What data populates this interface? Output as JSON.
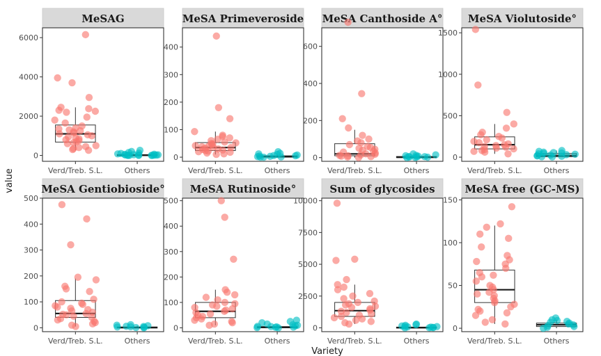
{
  "figure": {
    "xlabel": "Variety",
    "ylabel": "value"
  },
  "colors": {
    "group1": "#f8766d",
    "group2": "#00bfc4"
  },
  "chart_data": [
    {
      "type": "box",
      "title": "MeSAG",
      "categories": [
        "Verd/Treb. S.L.",
        "Others"
      ],
      "ylim": [
        -300,
        6500
      ],
      "yticks": [
        0,
        2000,
        4000,
        6000
      ],
      "box_stats": [
        {
          "min": 260,
          "q1": 680,
          "median": 1100,
          "q3": 1550,
          "max": 2450
        },
        {
          "min": 0,
          "q1": 5,
          "median": 15,
          "q3": 40,
          "max": 110
        }
      ],
      "points": [
        [
          6150,
          3950,
          3700,
          2950,
          2450,
          2380,
          2300,
          2250,
          2200,
          1950,
          1800,
          1650,
          1500,
          1400,
          1350,
          1300,
          1250,
          1200,
          1150,
          1100,
          1050,
          1000,
          950,
          900,
          850,
          800,
          750,
          700,
          650,
          600,
          500,
          450,
          400,
          350,
          300,
          260
        ],
        [
          260,
          200,
          150,
          120,
          100,
          80,
          60,
          50,
          40,
          30,
          25,
          20,
          15,
          10,
          8,
          5,
          3,
          2,
          1,
          0
        ]
      ]
    },
    {
      "type": "box",
      "title": "MeSA Primeveroside",
      "categories": [
        "Verd/Treb. S.L.",
        "Others"
      ],
      "ylim": [
        -15,
        470
      ],
      "yticks": [
        0,
        100,
        200,
        300,
        400
      ],
      "box_stats": [
        {
          "min": 10,
          "q1": 24,
          "median": 35,
          "q3": 53,
          "max": 93
        },
        {
          "min": 0,
          "q1": 0,
          "median": 2,
          "q3": 5,
          "max": 12
        }
      ],
      "points": [
        [
          440,
          180,
          140,
          93,
          80,
          75,
          70,
          65,
          60,
          55,
          52,
          50,
          48,
          45,
          42,
          40,
          38,
          36,
          35,
          33,
          30,
          28,
          26,
          24,
          22,
          20,
          18,
          15,
          12,
          10
        ],
        [
          20,
          14,
          12,
          10,
          8,
          6,
          5,
          4,
          3,
          2,
          1,
          0,
          0
        ]
      ]
    },
    {
      "type": "box",
      "title": "MeSA Canthoside A°",
      "categories": [
        "Verd/Treb. S.L.",
        "Others"
      ],
      "ylim": [
        -20,
        700
      ],
      "yticks": [
        0,
        200,
        400,
        600
      ],
      "box_stats": [
        {
          "min": 0,
          "q1": 10,
          "median": 20,
          "q3": 75,
          "max": 150
        },
        {
          "min": 0,
          "q1": 0,
          "median": 2,
          "q3": 6,
          "max": 15
        }
      ],
      "points": [
        [
          730,
          345,
          210,
          160,
          120,
          100,
          90,
          80,
          70,
          60,
          55,
          50,
          45,
          40,
          35,
          30,
          25,
          20,
          18,
          15,
          12,
          10,
          8,
          5,
          3,
          0
        ],
        [
          20,
          15,
          12,
          10,
          8,
          6,
          5,
          4,
          3,
          2,
          1,
          0
        ]
      ]
    },
    {
      "type": "box",
      "title": "MeSA Violutoside°",
      "categories": [
        "Verd/Treb. S.L.",
        "Others"
      ],
      "ylim": [
        -50,
        1560
      ],
      "yticks": [
        0,
        500,
        1000,
        1500
      ],
      "box_stats": [
        {
          "min": 40,
          "q1": 100,
          "median": 150,
          "q3": 245,
          "max": 400
        },
        {
          "min": 0,
          "q1": 5,
          "median": 20,
          "q3": 45,
          "max": 80
        }
      ],
      "points": [
        [
          1540,
          870,
          540,
          400,
          350,
          300,
          270,
          250,
          230,
          210,
          190,
          175,
          160,
          150,
          140,
          130,
          120,
          110,
          100,
          90,
          80,
          70,
          60,
          40
        ],
        [
          80,
          70,
          60,
          55,
          50,
          45,
          40,
          35,
          30,
          25,
          20,
          15,
          10,
          5,
          2
        ]
      ]
    },
    {
      "type": "box",
      "title": "MeSA Gentiobioside°",
      "categories": [
        "Verd/Treb. S.L.",
        "Others"
      ],
      "ylim": [
        -15,
        500
      ],
      "yticks": [
        0,
        100,
        200,
        300,
        400,
        500
      ],
      "box_stats": [
        {
          "min": 5,
          "q1": 40,
          "median": 55,
          "q3": 105,
          "max": 190
        },
        {
          "min": 0,
          "q1": 0,
          "median": 1,
          "q3": 3,
          "max": 8
        }
      ],
      "points": [
        [
          475,
          420,
          320,
          195,
          185,
          160,
          150,
          140,
          110,
          100,
          95,
          90,
          85,
          80,
          75,
          70,
          65,
          60,
          55,
          52,
          50,
          45,
          40,
          35,
          30,
          25,
          20,
          15,
          10,
          5
        ],
        [
          12,
          10,
          8,
          6,
          5,
          4,
          3,
          2,
          1,
          0
        ]
      ]
    },
    {
      "type": "box",
      "title": "MeSA Rutinoside°",
      "categories": [
        "Verd/Treb. S.L.",
        "Others"
      ],
      "ylim": [
        -15,
        510
      ],
      "yticks": [
        0,
        100,
        200,
        300,
        400,
        500
      ],
      "box_stats": [
        {
          "min": 10,
          "q1": 40,
          "median": 65,
          "q3": 100,
          "max": 150
        },
        {
          "min": 0,
          "q1": 0,
          "median": 2,
          "q3": 5,
          "max": 12
        }
      ],
      "points": [
        [
          500,
          435,
          270,
          150,
          140,
          130,
          120,
          110,
          100,
          95,
          90,
          85,
          80,
          75,
          70,
          65,
          60,
          55,
          50,
          45,
          40,
          35,
          30,
          25,
          20,
          15,
          10
        ],
        [
          30,
          25,
          20,
          15,
          12,
          10,
          8,
          6,
          5,
          4,
          3,
          2,
          1,
          0
        ]
      ]
    },
    {
      "type": "box",
      "title": "Sum of glycosides",
      "categories": [
        "Verd/Treb. S.L.",
        "Others"
      ],
      "ylim": [
        -300,
        10200
      ],
      "yticks": [
        0,
        2500,
        5000,
        7500,
        10000
      ],
      "box_stats": [
        {
          "min": 300,
          "q1": 900,
          "median": 1350,
          "q3": 2000,
          "max": 3400
        },
        {
          "min": 0,
          "q1": 0,
          "median": 20,
          "q3": 60,
          "max": 150
        }
      ],
      "points": [
        [
          9800,
          5400,
          5300,
          3800,
          3400,
          3200,
          3000,
          2700,
          2500,
          2300,
          2100,
          2000,
          1900,
          1800,
          1700,
          1600,
          1500,
          1400,
          1300,
          1200,
          1100,
          1000,
          900,
          800,
          700,
          600,
          500,
          400,
          300
        ],
        [
          300,
          250,
          200,
          150,
          120,
          100,
          80,
          60,
          40,
          20,
          10,
          0
        ]
      ]
    },
    {
      "type": "box",
      "title": "MeSA free (GC-MS)",
      "categories": [
        "Verd/Treb. S.L.",
        "Others"
      ],
      "ylim": [
        -4,
        152
      ],
      "yticks": [
        0,
        50,
        100,
        150
      ],
      "box_stats": [
        {
          "min": 5,
          "q1": 30,
          "median": 45,
          "q3": 68,
          "max": 120
        },
        {
          "min": 0,
          "q1": 2,
          "median": 4,
          "q3": 6,
          "max": 10
        }
      ],
      "points": [
        [
          142,
          122,
          118,
          110,
          105,
          95,
          85,
          80,
          78,
          75,
          70,
          65,
          62,
          60,
          55,
          50,
          48,
          45,
          42,
          40,
          38,
          35,
          32,
          30,
          28,
          25,
          22,
          20,
          18,
          15,
          10,
          7,
          5
        ],
        [
          12,
          10,
          9,
          8,
          7,
          6,
          5,
          4,
          3,
          2,
          1,
          0
        ]
      ]
    }
  ]
}
